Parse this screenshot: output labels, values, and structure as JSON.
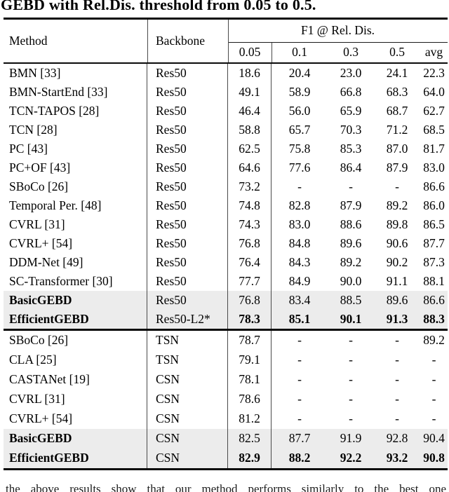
{
  "title": "GEBD with Rel.Dis. threshold from 0.05 to 0.5.",
  "colors": {
    "highlight_row_bg": "#ececec",
    "rule": "#0a0a0a",
    "text": "#000000"
  },
  "table": {
    "col_method": "Method",
    "col_backbone": "Backbone",
    "f1_header": "F1 @ Rel. Dis.",
    "subcols": [
      "0.05",
      "0.1",
      "0.3",
      "0.5",
      "avg"
    ],
    "groups": [
      {
        "rows": [
          {
            "method": "BMN [33]",
            "backbone": "Res50",
            "values": [
              "18.6",
              "20.4",
              "23.0",
              "24.1",
              "22.3"
            ],
            "highlight": false,
            "bold_values": false
          },
          {
            "method": "BMN-StartEnd [33]",
            "backbone": "Res50",
            "values": [
              "49.1",
              "58.9",
              "66.8",
              "68.3",
              "64.0"
            ],
            "highlight": false,
            "bold_values": false
          },
          {
            "method": "TCN-TAPOS [28]",
            "backbone": "Res50",
            "values": [
              "46.4",
              "56.0",
              "65.9",
              "68.7",
              "62.7"
            ],
            "highlight": false,
            "bold_values": false
          },
          {
            "method": "TCN [28]",
            "backbone": "Res50",
            "values": [
              "58.8",
              "65.7",
              "70.3",
              "71.2",
              "68.5"
            ],
            "highlight": false,
            "bold_values": false
          },
          {
            "method": "PC [43]",
            "backbone": "Res50",
            "values": [
              "62.5",
              "75.8",
              "85.3",
              "87.0",
              "81.7"
            ],
            "highlight": false,
            "bold_values": false
          },
          {
            "method": "PC+OF [43]",
            "backbone": "Res50",
            "values": [
              "64.6",
              "77.6",
              "86.4",
              "87.9",
              "83.0"
            ],
            "highlight": false,
            "bold_values": false
          },
          {
            "method": "SBoCo [26]",
            "backbone": "Res50",
            "values": [
              "73.2",
              "-",
              "-",
              "-",
              "86.6"
            ],
            "highlight": false,
            "bold_values": false
          },
          {
            "method": "Temporal Per. [48]",
            "backbone": "Res50",
            "values": [
              "74.8",
              "82.8",
              "87.9",
              "89.2",
              "86.0"
            ],
            "highlight": false,
            "bold_values": false
          },
          {
            "method": "CVRL [31]",
            "backbone": "Res50",
            "values": [
              "74.3",
              "83.0",
              "88.6",
              "89.8",
              "86.5"
            ],
            "highlight": false,
            "bold_values": false
          },
          {
            "method": "CVRL+ [54]",
            "backbone": "Res50",
            "values": [
              "76.8",
              "84.8",
              "89.6",
              "90.6",
              "87.7"
            ],
            "highlight": false,
            "bold_values": false
          },
          {
            "method": "DDM-Net [49]",
            "backbone": "Res50",
            "values": [
              "76.4",
              "84.3",
              "89.2",
              "90.2",
              "87.3"
            ],
            "highlight": false,
            "bold_values": false
          },
          {
            "method": "SC-Transformer [30]",
            "backbone": "Res50",
            "values": [
              "77.7",
              "84.9",
              "90.0",
              "91.1",
              "88.1"
            ],
            "highlight": false,
            "bold_values": false
          },
          {
            "method": "BasicGEBD",
            "backbone": "Res50",
            "values": [
              "76.8",
              "83.4",
              "88.5",
              "89.6",
              "86.6"
            ],
            "highlight": true,
            "bold_values": false
          },
          {
            "method": "EfficientGEBD",
            "backbone": "Res50-L2*",
            "values": [
              "78.3",
              "85.1",
              "90.1",
              "91.3",
              "88.3"
            ],
            "highlight": true,
            "bold_values": true
          }
        ]
      },
      {
        "rows": [
          {
            "method": "SBoCo [26]",
            "backbone": "TSN",
            "values": [
              "78.7",
              "-",
              "-",
              "-",
              "89.2"
            ],
            "highlight": false,
            "bold_values": false
          },
          {
            "method": "CLA [25]",
            "backbone": "TSN",
            "values": [
              "79.1",
              "-",
              "-",
              "-",
              "-"
            ],
            "highlight": false,
            "bold_values": false
          },
          {
            "method": "CASTANet [19]",
            "backbone": "CSN",
            "values": [
              "78.1",
              "-",
              "-",
              "-",
              "-"
            ],
            "highlight": false,
            "bold_values": false
          },
          {
            "method": "CVRL [31]",
            "backbone": "CSN",
            "values": [
              "78.6",
              "-",
              "-",
              "-",
              "-"
            ],
            "highlight": false,
            "bold_values": false
          },
          {
            "method": "CVRL+ [54]",
            "backbone": "CSN",
            "values": [
              "81.2",
              "-",
              "-",
              "-",
              "-"
            ],
            "highlight": false,
            "bold_values": false
          },
          {
            "method": "BasicGEBD",
            "backbone": "CSN",
            "values": [
              "82.5",
              "87.7",
              "91.9",
              "92.8",
              "90.4"
            ],
            "highlight": true,
            "bold_values": false
          },
          {
            "method": "EfficientGEBD",
            "backbone": "CSN",
            "values": [
              "82.9",
              "88.2",
              "92.2",
              "93.2",
              "90.8"
            ],
            "highlight": true,
            "bold_values": true
          }
        ]
      }
    ]
  },
  "footer": {
    "clipped_text": "the above results show that our method performs similarly to the best one"
  }
}
